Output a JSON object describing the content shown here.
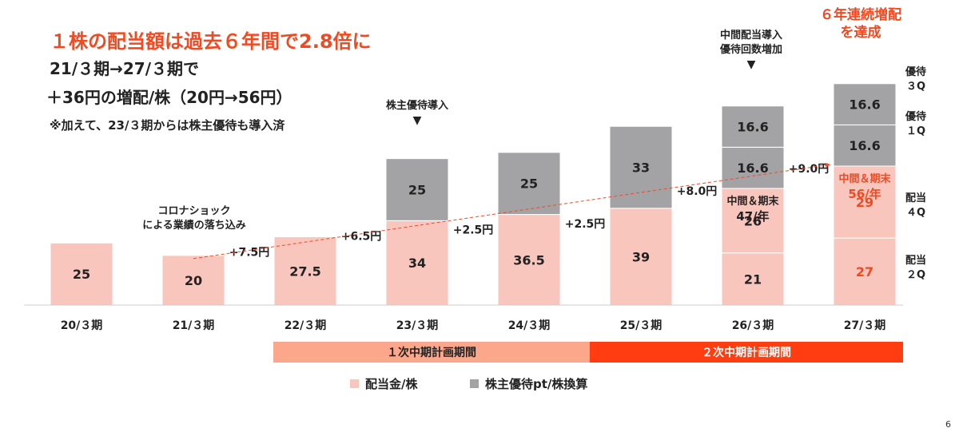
{
  "headline": "１株の配当額は過去６年間で2.8倍に",
  "subheadline1": "21/３期→27/３期で",
  "subheadline2": "＋36円の増配/株（20円→56円）",
  "note": "※加えて、23/３期からは株主優待も導入済",
  "achievement": [
    "６年連続増配",
    "を達成"
  ],
  "annotations": {
    "corona": [
      "コロナショック",
      "による業績の落ち込み"
    ],
    "yutai_intro": "株主優待導入",
    "interim_intro": [
      "中間配当導入",
      "優待回数増加"
    ],
    "down_arrow": "▼"
  },
  "right_labels": [
    {
      "lines": [
        "優待",
        "３Q"
      ]
    },
    {
      "lines": [
        "優待",
        "１Q"
      ]
    },
    {
      "lines": [
        "配当",
        "４Q"
      ]
    },
    {
      "lines": [
        "配当",
        "２Q"
      ]
    }
  ],
  "periods": [
    {
      "label": "１次中期計画期間",
      "color": "#fca78c"
    },
    {
      "label": "２次中期計画期間",
      "color": "#ff3d10"
    }
  ],
  "legend": [
    {
      "label": "配当金/株",
      "color": "#f9c6bd"
    },
    {
      "label": "株主優待pt/株換算",
      "color": "#a3a3a6"
    }
  ],
  "page_number": "6",
  "colors": {
    "dividend": "#f9c6bd",
    "yutai": "#a3a3a6",
    "accent": "#f04a23",
    "text": "#222222"
  },
  "chart_data": {
    "type": "bar",
    "stacked": true,
    "categories": [
      "20/３期",
      "21/３期",
      "22/３期",
      "23/３期",
      "24/３期",
      "25/３期",
      "26/３期",
      "27/３期"
    ],
    "series": [
      {
        "name": "配当金/株",
        "values": [
          25,
          20,
          27.5,
          34,
          36.5,
          39,
          47,
          56
        ]
      },
      {
        "name": "株主優待pt/株換算",
        "values": [
          0,
          0,
          0,
          25,
          25,
          33,
          33.2,
          33.2
        ]
      }
    ],
    "segments": [
      [
        {
          "value": 25,
          "label": "25",
          "kind": "dividend"
        }
      ],
      [
        {
          "value": 20,
          "label": "20",
          "kind": "dividend"
        }
      ],
      [
        {
          "value": 27.5,
          "label": "27.5",
          "kind": "dividend"
        }
      ],
      [
        {
          "value": 34,
          "label": "34",
          "kind": "dividend"
        },
        {
          "value": 25,
          "label": "25",
          "kind": "yutai"
        }
      ],
      [
        {
          "value": 36.5,
          "label": "36.5",
          "kind": "dividend"
        },
        {
          "value": 25,
          "label": "25",
          "kind": "yutai"
        }
      ],
      [
        {
          "value": 39,
          "label": "39",
          "kind": "dividend"
        },
        {
          "value": 33,
          "label": "33",
          "kind": "yutai"
        }
      ],
      [
        {
          "value": 21,
          "label": "21",
          "kind": "dividend"
        },
        {
          "value": 26,
          "label": "26",
          "kind": "dividend"
        },
        {
          "value": 16.6,
          "label": "16.6",
          "kind": "yutai"
        },
        {
          "value": 16.6,
          "label": "16.6",
          "kind": "yutai"
        }
      ],
      [
        {
          "value": 27,
          "label": "27",
          "kind": "dividend",
          "highlight": true
        },
        {
          "value": 29,
          "label": "29",
          "kind": "dividend",
          "highlight": true
        },
        {
          "value": 16.6,
          "label": "16.6",
          "kind": "yutai"
        },
        {
          "value": 16.6,
          "label": "16.6",
          "kind": "yutai"
        }
      ]
    ],
    "increments": [
      "+7.5円",
      "+6.5円",
      "+2.5円",
      "+2.5円",
      "+8.0円",
      "+9.0円"
    ],
    "totals": [
      {
        "category": "26/３期",
        "lines": [
          "中間＆期末",
          "47/年"
        ]
      },
      {
        "category": "27/３期",
        "lines": [
          "中間＆期末",
          "56/年"
        ],
        "highlight": true
      }
    ],
    "trend": {
      "from": "21/３期",
      "to": "27/３期",
      "style": "dashed-arrow",
      "color": "#f04a23"
    },
    "ylim": [
      0,
      102
    ],
    "legend_position": "bottom",
    "grid": false
  }
}
